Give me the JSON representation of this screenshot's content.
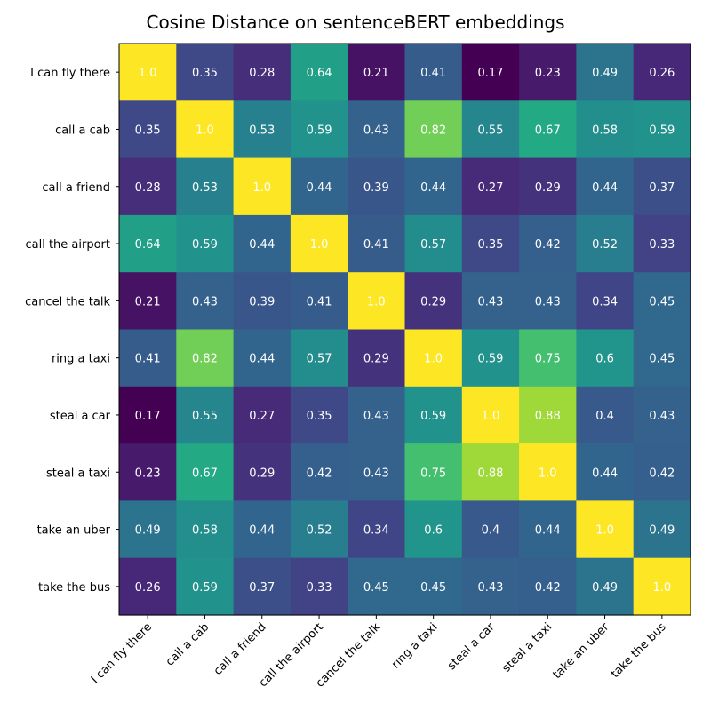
{
  "chart_data": {
    "type": "heatmap",
    "title": "Cosine Distance on sentenceBERT embeddings",
    "colormap": "viridis",
    "vmin": 0.17,
    "vmax": 1.0,
    "labels": [
      "I can fly there",
      "call a cab",
      "call a friend",
      "call the airport",
      "cancel the talk",
      "ring a taxi",
      "steal a car",
      "steal a taxi",
      "take an uber",
      "take the bus"
    ],
    "values": [
      [
        1.0,
        0.35,
        0.28,
        0.64,
        0.21,
        0.41,
        0.17,
        0.23,
        0.49,
        0.26
      ],
      [
        0.35,
        1.0,
        0.53,
        0.59,
        0.43,
        0.82,
        0.55,
        0.67,
        0.58,
        0.59
      ],
      [
        0.28,
        0.53,
        1.0,
        0.44,
        0.39,
        0.44,
        0.27,
        0.29,
        0.44,
        0.37
      ],
      [
        0.64,
        0.59,
        0.44,
        1.0,
        0.41,
        0.57,
        0.35,
        0.42,
        0.52,
        0.33
      ],
      [
        0.21,
        0.43,
        0.39,
        0.41,
        1.0,
        0.29,
        0.43,
        0.43,
        0.34,
        0.45
      ],
      [
        0.41,
        0.82,
        0.44,
        0.57,
        0.29,
        1.0,
        0.59,
        0.75,
        0.6,
        0.45
      ],
      [
        0.17,
        0.55,
        0.27,
        0.35,
        0.43,
        0.59,
        1.0,
        0.88,
        0.4,
        0.43
      ],
      [
        0.23,
        0.67,
        0.29,
        0.42,
        0.43,
        0.75,
        0.88,
        1.0,
        0.44,
        0.42
      ],
      [
        0.49,
        0.58,
        0.44,
        0.52,
        0.34,
        0.6,
        0.4,
        0.44,
        1.0,
        0.49
      ],
      [
        0.26,
        0.59,
        0.37,
        0.33,
        0.45,
        0.45,
        0.43,
        0.42,
        0.49,
        1.0
      ]
    ],
    "value_labels": [
      [
        "1.0",
        "0.35",
        "0.28",
        "0.64",
        "0.21",
        "0.41",
        "0.17",
        "0.23",
        "0.49",
        "0.26"
      ],
      [
        "0.35",
        "1.0",
        "0.53",
        "0.59",
        "0.43",
        "0.82",
        "0.55",
        "0.67",
        "0.58",
        "0.59"
      ],
      [
        "0.28",
        "0.53",
        "1.0",
        "0.44",
        "0.39",
        "0.44",
        "0.27",
        "0.29",
        "0.44",
        "0.37"
      ],
      [
        "0.64",
        "0.59",
        "0.44",
        "1.0",
        "0.41",
        "0.57",
        "0.35",
        "0.42",
        "0.52",
        "0.33"
      ],
      [
        "0.21",
        "0.43",
        "0.39",
        "0.41",
        "1.0",
        "0.29",
        "0.43",
        "0.43",
        "0.34",
        "0.45"
      ],
      [
        "0.41",
        "0.82",
        "0.44",
        "0.57",
        "0.29",
        "1.0",
        "0.59",
        "0.75",
        "0.6",
        "0.45"
      ],
      [
        "0.17",
        "0.55",
        "0.27",
        "0.35",
        "0.43",
        "0.59",
        "1.0",
        "0.88",
        "0.4",
        "0.43"
      ],
      [
        "0.23",
        "0.67",
        "0.29",
        "0.42",
        "0.43",
        "0.75",
        "0.88",
        "1.0",
        "0.44",
        "0.42"
      ],
      [
        "0.49",
        "0.58",
        "0.44",
        "0.52",
        "0.34",
        "0.6",
        "0.4",
        "0.44",
        "1.0",
        "0.49"
      ],
      [
        "0.26",
        "0.59",
        "0.37",
        "0.33",
        "0.45",
        "0.45",
        "0.43",
        "0.42",
        "0.49",
        "1.0"
      ]
    ]
  }
}
